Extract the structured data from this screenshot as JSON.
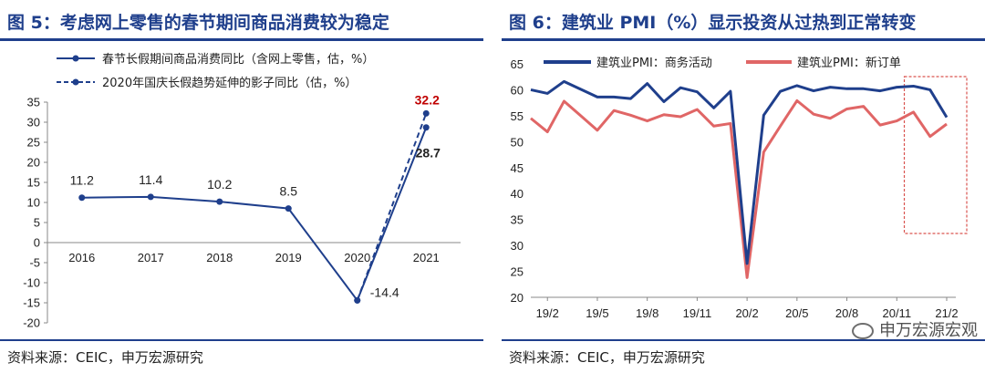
{
  "left": {
    "title": "图 5：考虑网上零售的春节期间商品消费较为稳定",
    "source": "资料来源：CEIC，申万宏源研究",
    "chart_data": {
      "type": "line",
      "categories": [
        "2016",
        "2017",
        "2018",
        "2019",
        "2020",
        "2021"
      ],
      "ylim": [
        -20,
        35
      ],
      "yticks": [
        -20,
        -15,
        -10,
        -5,
        0,
        5,
        10,
        15,
        20,
        25,
        30,
        35
      ],
      "grid": false,
      "legend_position": "top-left",
      "series": [
        {
          "name": "春节长假期间商品消费同比（含网上零售，估，%）",
          "style": "solid",
          "color": "#1f3f8c",
          "values": [
            11.2,
            11.4,
            10.2,
            8.5,
            -14.4,
            28.7
          ],
          "labels": [
            "11.2",
            "11.4",
            "10.2",
            "8.5",
            "-14.4",
            "28.7"
          ]
        },
        {
          "name": "2020年国庆长假趋势延伸的影子同比（估，%）",
          "style": "dashed",
          "color": "#1f3f8c",
          "points": [
            [
              "2020",
              -14.4
            ],
            [
              "2021",
              32.2
            ]
          ],
          "label": "32.2",
          "label_color": "#c00000"
        }
      ]
    }
  },
  "right": {
    "title": "图 6：建筑业 PMI（%）显示投资从过热到正常转变",
    "source": "资料来源：CEIC，申万宏源研究",
    "watermark": "申万宏源宏观",
    "chart_data": {
      "type": "line",
      "ylim": [
        20,
        65
      ],
      "yticks": [
        20,
        25,
        30,
        35,
        40,
        45,
        50,
        55,
        60,
        65
      ],
      "x_tick_labels": [
        "19/2",
        "19/5",
        "19/8",
        "19/11",
        "20/2",
        "20/5",
        "20/8",
        "20/11",
        "21/2"
      ],
      "x_tick_months": [
        "2019-02",
        "2019-05",
        "2019-08",
        "2019-11",
        "2020-02",
        "2020-05",
        "2020-08",
        "2020-11",
        "2021-02"
      ],
      "months": [
        "2019-01",
        "2019-02",
        "2019-03",
        "2019-04",
        "2019-05",
        "2019-06",
        "2019-07",
        "2019-08",
        "2019-09",
        "2019-10",
        "2019-11",
        "2019-12",
        "2020-01",
        "2020-02",
        "2020-03",
        "2020-04",
        "2020-05",
        "2020-06",
        "2020-07",
        "2020-08",
        "2020-09",
        "2020-10",
        "2020-11",
        "2020-12",
        "2021-01",
        "2021-02"
      ],
      "grid": false,
      "legend_position": "top",
      "highlight_box": {
        "from": "2020-12",
        "to": "2021-02",
        "color": "#d9534f"
      },
      "series": [
        {
          "name": "建筑业PMI：商务活动",
          "color": "#1f3f8c",
          "values": [
            60.0,
            59.3,
            61.6,
            60.1,
            58.6,
            58.6,
            58.3,
            61.2,
            57.7,
            60.4,
            59.6,
            56.5,
            59.7,
            26.5,
            55.1,
            59.7,
            60.8,
            59.8,
            60.5,
            60.2,
            60.2,
            59.8,
            60.5,
            60.7,
            60.0,
            54.7
          ]
        },
        {
          "name": "建筑业PMI：新订单",
          "color": "#e06666",
          "values": [
            54.5,
            51.9,
            57.8,
            55.0,
            52.2,
            56.0,
            55.1,
            54.0,
            55.2,
            54.8,
            56.2,
            53.0,
            53.5,
            23.8,
            48.0,
            53.0,
            57.9,
            55.3,
            54.5,
            56.3,
            56.8,
            53.2,
            54.0,
            55.7,
            51.0,
            53.4
          ]
        }
      ]
    }
  }
}
